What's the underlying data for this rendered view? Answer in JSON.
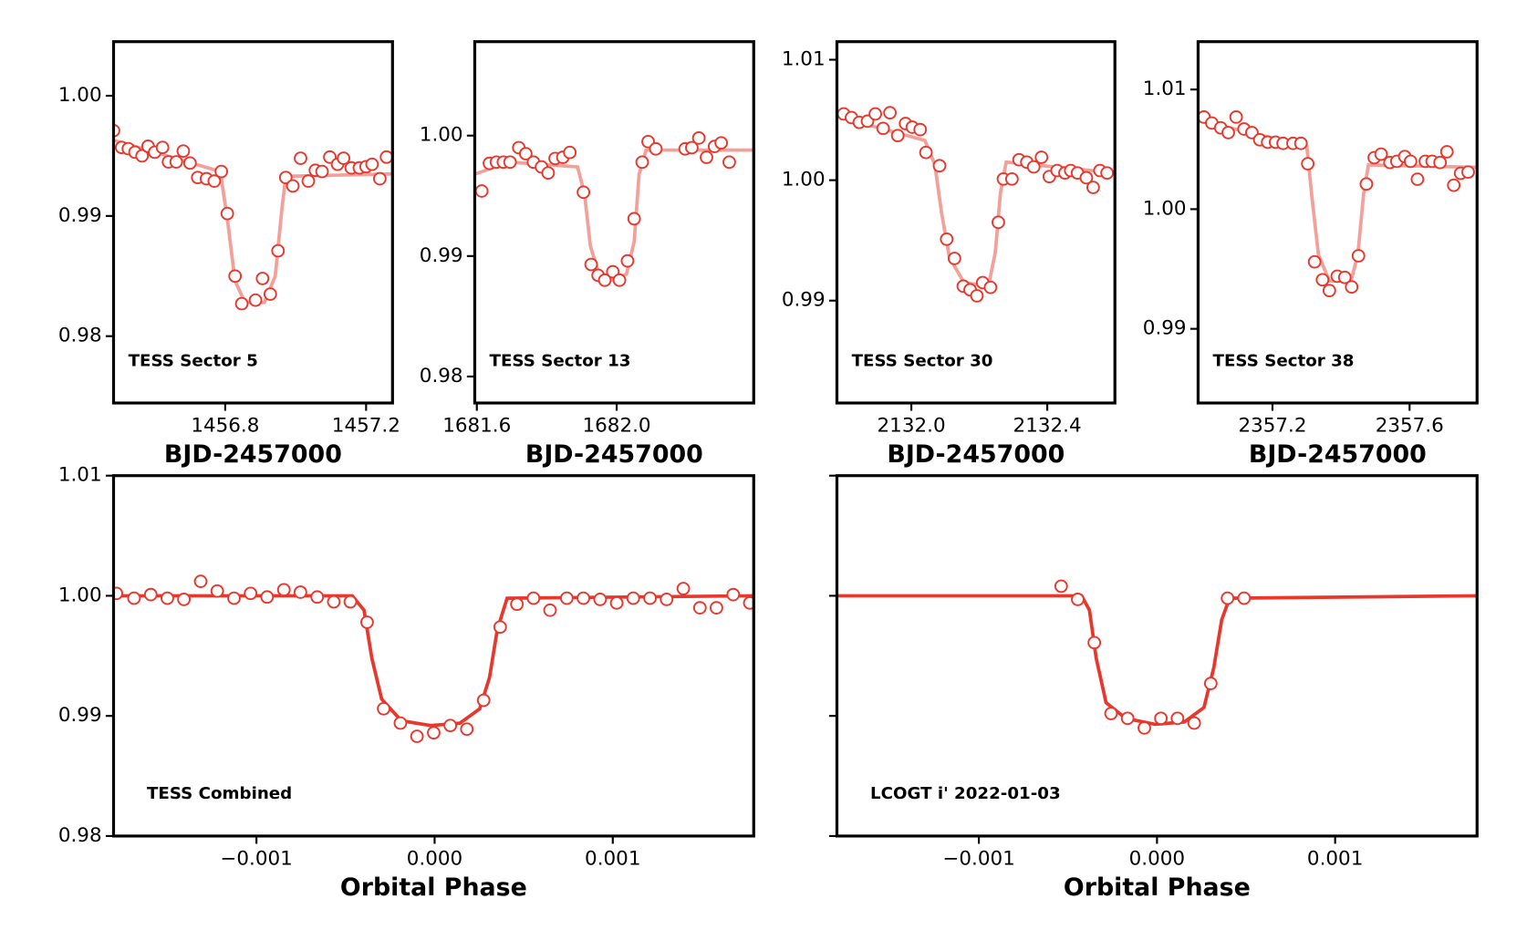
{
  "chart_data": [
    {
      "type": "scatter",
      "annotation": "TESS Sector 5",
      "xlabel": "BJD-2457000",
      "xlim": [
        1456.483,
        1457.275
      ],
      "ylim": [
        0.97444,
        1.0045
      ],
      "xticks": [
        1456.8,
        1457.2
      ],
      "yticks": [
        0.98,
        0.99,
        {
          "value": 1,
          "label": "1.00"
        }
      ],
      "model": {
        "color": "#f4a09a",
        "x": [
          1456.483,
          1456.786,
          1456.806,
          1456.828,
          1456.856,
          1456.911,
          1456.942,
          1456.961,
          1456.972,
          1457.275
        ],
        "values": [
          0.9963,
          0.9937,
          0.9898,
          0.9846,
          0.9828,
          0.9828,
          0.985,
          0.9906,
          0.9933,
          0.9935
        ]
      },
      "points": {
        "color": "#e8372c",
        "x": [
          1456.483,
          1456.506,
          1456.525,
          1456.544,
          1456.564,
          1456.581,
          1456.6,
          1456.622,
          1456.639,
          1456.661,
          1456.681,
          1456.7,
          1456.722,
          1456.747,
          1456.769,
          1456.789,
          1456.806,
          1456.828,
          1456.847,
          1456.886,
          1456.906,
          1456.928,
          1456.95,
          1456.972,
          1456.992,
          1457.014,
          1457.036,
          1457.056,
          1457.075,
          1457.097,
          1457.119,
          1457.136,
          1457.158,
          1457.181,
          1457.2,
          1457.217,
          1457.239,
          1457.258
        ],
        "values": [
          0.9971,
          0.9957,
          0.9956,
          0.9953,
          0.995,
          0.9958,
          0.9953,
          0.9957,
          0.9945,
          0.9945,
          0.9954,
          0.9944,
          0.9932,
          0.9931,
          0.9929,
          0.9937,
          0.9902,
          0.985,
          0.9827,
          0.983,
          0.9848,
          0.9835,
          0.9871,
          0.9932,
          0.9925,
          0.9948,
          0.9929,
          0.9938,
          0.9937,
          0.9949,
          0.9943,
          0.9948,
          0.994,
          0.994,
          0.9941,
          0.9943,
          0.9931,
          0.9949
        ]
      }
    },
    {
      "type": "scatter",
      "annotation": "TESS Sector 13",
      "xlabel": "BJD-2457000",
      "xlim": [
        1681.594,
        1682.392
      ],
      "ylim": [
        0.9778,
        1.0078
      ],
      "xticks": [
        1681.6,
        {
          "value": 1682,
          "label": "1682.0"
        }
      ],
      "yticks": [
        0.98,
        0.99,
        {
          "value": 1,
          "label": "1.00"
        }
      ],
      "model": {
        "color": "#f4a09a",
        "x": [
          1681.594,
          1681.692,
          1681.888,
          1681.908,
          1681.925,
          1681.95,
          1681.987,
          1682.028,
          1682.05,
          1682.064,
          1682.084,
          1682.392
        ],
        "values": [
          0.9968,
          0.9978,
          0.9974,
          0.9952,
          0.9908,
          0.9885,
          0.988,
          0.9885,
          0.9912,
          0.9968,
          0.9988,
          0.9988
        ]
      },
      "points": {
        "color": "#e8372c",
        "x": [
          1681.614,
          1681.636,
          1681.656,
          1681.676,
          1681.695,
          1681.72,
          1681.74,
          1681.762,
          1681.785,
          1681.804,
          1681.824,
          1681.846,
          1681.866,
          1681.905,
          1681.927,
          1681.947,
          1681.966,
          1681.989,
          1682.008,
          1682.031,
          1682.05,
          1682.073,
          1682.09,
          1682.112,
          1682.196,
          1682.215,
          1682.235,
          1682.257,
          1682.28,
          1682.299,
          1682.322
        ],
        "values": [
          0.9954,
          0.9977,
          0.9978,
          0.9978,
          0.9978,
          0.999,
          0.9985,
          0.9978,
          0.9974,
          0.9969,
          0.9981,
          0.9982,
          0.9986,
          0.9953,
          0.9893,
          0.9884,
          0.988,
          0.9887,
          0.988,
          0.9896,
          0.9931,
          0.9978,
          0.9995,
          0.9989,
          0.9989,
          0.999,
          0.9998,
          0.9982,
          0.9991,
          0.9994,
          0.9978
        ]
      }
    },
    {
      "type": "scatter",
      "annotation": "TESS Sector 30",
      "xlabel": "BJD-2457000",
      "xlim": [
        2131.781,
        2132.599
      ],
      "ylim": [
        0.9815,
        1.0115
      ],
      "xticks": [
        {
          "value": 2132,
          "label": "2132.0"
        },
        2132.4
      ],
      "yticks": [
        0.99,
        {
          "value": 1,
          "label": "1.00"
        },
        1.01
      ],
      "model": {
        "color": "#f4a09a",
        "x": [
          2131.781,
          2132.04,
          2132.069,
          2132.089,
          2132.112,
          2132.155,
          2132.227,
          2132.247,
          2132.262,
          2132.279,
          2132.599
        ],
        "values": [
          1.0053,
          1.0033,
          1.0013,
          0.9973,
          0.9936,
          0.9915,
          0.9912,
          0.994,
          0.9989,
          1.0015,
          1.0006
        ]
      },
      "points": {
        "color": "#e8372c",
        "x": [
          2131.801,
          2131.824,
          2131.847,
          2131.871,
          2131.894,
          2131.917,
          2131.937,
          2131.96,
          2131.983,
          2132.003,
          2132.026,
          2132.043,
          2132.083,
          2132.104,
          2132.127,
          2132.153,
          2132.173,
          2132.193,
          2132.21,
          2132.233,
          2132.256,
          2132.271,
          2132.296,
          2132.317,
          2132.34,
          2132.36,
          2132.383,
          2132.406,
          2132.429,
          2132.452,
          2132.469,
          2132.489,
          2132.515,
          2132.535,
          2132.555,
          2132.576
        ],
        "values": [
          1.0055,
          1.0052,
          1.0048,
          1.0049,
          1.0055,
          1.0043,
          1.0056,
          1.0037,
          1.0047,
          1.0044,
          1.0042,
          1.0023,
          1.0012,
          0.9951,
          0.9935,
          0.9912,
          0.9909,
          0.9904,
          0.9915,
          0.9911,
          0.9965,
          1.0001,
          1.0001,
          1.0017,
          1.0015,
          1.0011,
          1.0019,
          1.0003,
          1.0008,
          1.0006,
          1.0008,
          1.0006,
          1.0002,
          0.9994,
          1.0008,
          1.0006
        ]
      }
    },
    {
      "type": "scatter",
      "annotation": "TESS Sector 38",
      "xlabel": "BJD-2457000",
      "xlim": [
        2356.983,
        2357.797
      ],
      "ylim": [
        0.9838,
        1.014
      ],
      "xticks": [
        2357.2,
        2357.6
      ],
      "yticks": [
        0.99,
        {
          "value": 1,
          "label": "1.00"
        },
        1.01
      ],
      "model": {
        "color": "#f4a09a",
        "x": [
          2356.983,
          2357.3,
          2357.314,
          2357.334,
          2357.366,
          2357.429,
          2357.449,
          2357.466,
          2357.48,
          2357.797
        ],
        "values": [
          1.0074,
          1.0053,
          1.0013,
          0.9962,
          0.994,
          0.994,
          0.9962,
          1.0013,
          1.0037,
          1.0035
        ]
      },
      "points": {
        "color": "#e8372c",
        "x": [
          2357.0,
          2357.023,
          2357.049,
          2357.071,
          2357.094,
          2357.117,
          2357.14,
          2357.163,
          2357.186,
          2357.209,
          2357.231,
          2357.26,
          2357.283,
          2357.303,
          2357.323,
          2357.346,
          2357.366,
          2357.389,
          2357.411,
          2357.431,
          2357.451,
          2357.474,
          2357.497,
          2357.517,
          2357.543,
          2357.563,
          2357.586,
          2357.603,
          2357.623,
          2357.646,
          2357.666,
          2357.689,
          2357.709,
          2357.729,
          2357.749,
          2357.771
        ],
        "values": [
          1.0077,
          1.0072,
          1.0068,
          1.0064,
          1.0077,
          1.0067,
          1.0064,
          1.0058,
          1.0056,
          1.0056,
          1.0055,
          1.0055,
          1.0055,
          1.0038,
          0.9956,
          0.9941,
          0.9932,
          0.9944,
          0.9943,
          0.9935,
          0.9961,
          1.0021,
          1.0043,
          1.0046,
          1.0039,
          1.004,
          1.0044,
          1.004,
          1.0025,
          1.004,
          1.004,
          1.0039,
          1.0048,
          1.002,
          1.003,
          1.0031
        ]
      }
    },
    {
      "type": "scatter",
      "annotation": "TESS Combined",
      "xlabel": "Orbital Phase",
      "xlim": [
        -0.001802,
        0.001791
      ],
      "ylim": [
        0.98,
        1.01
      ],
      "xticks": [
        {
          "value": -0.001,
          "label": "−0.001"
        },
        {
          "value": 0,
          "label": "0.000"
        },
        0.001
      ],
      "yticks": [
        0.98,
        0.99,
        {
          "value": 1,
          "label": "1.00"
        },
        1.01
      ],
      "model": {
        "color": "#e8372c",
        "x": [
          -0.001802,
          -0.000462,
          -0.000396,
          -0.000352,
          -0.000297,
          -0.000187,
          -2.2e-05,
          0.000143,
          0.000253,
          0.000308,
          0.000352,
          0.000407,
          0.001791
        ],
        "values": [
          1.0,
          1.0,
          0.9988,
          0.9948,
          0.9914,
          0.9896,
          0.9892,
          0.9894,
          0.9906,
          0.9932,
          0.9972,
          0.9998,
          1.0
        ]
      },
      "points": {
        "color": "#e8372c",
        "x": [
          -0.001786,
          -0.001687,
          -0.001593,
          -0.0015,
          -0.001407,
          -0.001313,
          -0.00122,
          -0.001126,
          -0.001033,
          -0.00094,
          -0.000846,
          -0.000753,
          -0.000659,
          -0.000566,
          -0.000473,
          -0.000379,
          -0.000286,
          -0.000192,
          -9.9e-05,
          -5e-06,
          8.8e-05,
          0.000181,
          0.000275,
          0.000368,
          0.000462,
          0.000555,
          0.000648,
          0.000742,
          0.000835,
          0.000929,
          0.001022,
          0.001115,
          0.001209,
          0.001302,
          0.001396,
          0.001489,
          0.001582,
          0.001676,
          0.001769
        ],
        "values": [
          1.0002,
          0.9998,
          1.0001,
          0.9998,
          0.9997,
          1.0012,
          1.0004,
          0.9998,
          1.0002,
          0.9999,
          1.0005,
          1.0003,
          0.9999,
          0.9995,
          0.9995,
          0.9978,
          0.9906,
          0.9894,
          0.9883,
          0.9886,
          0.9892,
          0.9889,
          0.9913,
          0.9974,
          0.9993,
          0.9998,
          0.9988,
          0.9998,
          0.9998,
          0.9997,
          0.9994,
          0.9998,
          0.9998,
          0.9997,
          1.0006,
          0.999,
          0.999,
          1.0001,
          0.9994
        ]
      }
    },
    {
      "type": "scatter",
      "annotation": "LCOGT i' 2022-01-03",
      "xlabel": "Orbital Phase",
      "xlim": [
        -0.001797,
        0.001797
      ],
      "ylim": [
        0.98,
        1.01
      ],
      "ytick_labels": false,
      "xticks": [
        {
          "value": -0.001,
          "label": "−0.001"
        },
        {
          "value": 0,
          "label": "0.000"
        },
        0.001
      ],
      "yticks": [
        0.98,
        0.99,
        1.0,
        1.01
      ],
      "model": {
        "color": "#e8372c",
        "x": [
          -0.001797,
          -0.000423,
          -0.000379,
          -0.000341,
          -0.000286,
          -0.000176,
          -1.1e-05,
          0.000154,
          0.000264,
          0.000319,
          0.000363,
          0.000407,
          0.001797
        ],
        "values": [
          1.0,
          1.0,
          0.9988,
          0.9948,
          0.9911,
          0.9898,
          0.9893,
          0.9895,
          0.9907,
          0.994,
          0.998,
          0.9998,
          1.0
        ]
      },
      "points": {
        "color": "#e8372c",
        "x": [
          -0.000538,
          -0.000445,
          -0.000352,
          -0.000258,
          -0.000165,
          -7.1e-05,
          2.2e-05,
          0.000115,
          0.000209,
          0.000302,
          0.000396,
          0.000489
        ],
        "values": [
          1.0008,
          0.9997,
          0.9961,
          0.9902,
          0.9898,
          0.989,
          0.9898,
          0.9898,
          0.9894,
          0.9927,
          0.9998,
          0.9998
        ]
      }
    }
  ]
}
